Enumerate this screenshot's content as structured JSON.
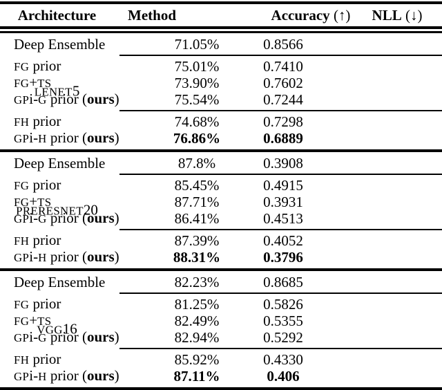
{
  "colors": {
    "background": "#ffffff",
    "text": "#000000",
    "rule": "#000000"
  },
  "table": {
    "header": {
      "architecture": "Architecture",
      "method": "Method",
      "accuracy": "Accuracy",
      "accuracy_suffix": " (↑)",
      "nll": "NLL",
      "nll_suffix": " (↓)"
    },
    "groups": [
      {
        "architecture": [
          {
            "t": "LENET",
            "s": "sc"
          },
          {
            "t": "5",
            "s": "n"
          }
        ],
        "sections": [
          {
            "rows": [
              {
                "method": [
                  {
                    "t": "Deep Ensemble",
                    "s": "n"
                  }
                ],
                "accuracy": "71.05%",
                "nll": "0.8566",
                "bold": false
              }
            ]
          },
          {
            "rows": [
              {
                "method": [
                  {
                    "t": "FG",
                    "s": "sc"
                  },
                  {
                    "t": " prior",
                    "s": "n"
                  }
                ],
                "accuracy": "75.01%",
                "nll": "0.7410",
                "bold": false
              },
              {
                "method": [
                  {
                    "t": "FG",
                    "s": "sc"
                  },
                  {
                    "t": "+",
                    "s": "n"
                  },
                  {
                    "t": "TS",
                    "s": "sc"
                  }
                ],
                "accuracy": "73.90%",
                "nll": "0.7602",
                "bold": false
              },
              {
                "method": [
                  {
                    "t": "GP",
                    "s": "sc"
                  },
                  {
                    "t": "i-",
                    "s": "n"
                  },
                  {
                    "t": "G",
                    "s": "sc"
                  },
                  {
                    "t": " prior (",
                    "s": "n"
                  },
                  {
                    "t": "ours",
                    "s": "b"
                  },
                  {
                    "t": ")",
                    "s": "n"
                  }
                ],
                "accuracy": "75.54%",
                "nll": "0.7244",
                "bold": false
              }
            ]
          },
          {
            "rows": [
              {
                "method": [
                  {
                    "t": "FH",
                    "s": "sc"
                  },
                  {
                    "t": " prior",
                    "s": "n"
                  }
                ],
                "accuracy": "74.68%",
                "nll": "0.7298",
                "bold": false
              },
              {
                "method": [
                  {
                    "t": "GP",
                    "s": "sc"
                  },
                  {
                    "t": "i-",
                    "s": "n"
                  },
                  {
                    "t": "H",
                    "s": "sc"
                  },
                  {
                    "t": " prior (",
                    "s": "n"
                  },
                  {
                    "t": "ours",
                    "s": "b"
                  },
                  {
                    "t": ")",
                    "s": "n"
                  }
                ],
                "accuracy": "76.86%",
                "nll": "0.6889",
                "bold": true
              }
            ]
          }
        ]
      },
      {
        "architecture": [
          {
            "t": "PRERESNET",
            "s": "sc"
          },
          {
            "t": "20",
            "s": "n"
          }
        ],
        "sections": [
          {
            "rows": [
              {
                "method": [
                  {
                    "t": "Deep Ensemble",
                    "s": "n"
                  }
                ],
                "accuracy": "87.8%",
                "nll": "0.3908",
                "bold": false
              }
            ]
          },
          {
            "rows": [
              {
                "method": [
                  {
                    "t": "FG",
                    "s": "sc"
                  },
                  {
                    "t": " prior",
                    "s": "n"
                  }
                ],
                "accuracy": "85.45%",
                "nll": "0.4915",
                "bold": false
              },
              {
                "method": [
                  {
                    "t": "FG",
                    "s": "sc"
                  },
                  {
                    "t": "+",
                    "s": "n"
                  },
                  {
                    "t": "TS",
                    "s": "sc"
                  }
                ],
                "accuracy": "87.71%",
                "nll": "0.3931",
                "bold": false
              },
              {
                "method": [
                  {
                    "t": "GP",
                    "s": "sc"
                  },
                  {
                    "t": "i-",
                    "s": "n"
                  },
                  {
                    "t": "G",
                    "s": "sc"
                  },
                  {
                    "t": " prior (",
                    "s": "n"
                  },
                  {
                    "t": "ours",
                    "s": "b"
                  },
                  {
                    "t": ")",
                    "s": "n"
                  }
                ],
                "accuracy": "86.41%",
                "nll": "0.4513",
                "bold": false
              }
            ]
          },
          {
            "rows": [
              {
                "method": [
                  {
                    "t": "FH",
                    "s": "sc"
                  },
                  {
                    "t": " prior",
                    "s": "n"
                  }
                ],
                "accuracy": "87.39%",
                "nll": "0.4052",
                "bold": false
              },
              {
                "method": [
                  {
                    "t": "GP",
                    "s": "sc"
                  },
                  {
                    "t": "i-",
                    "s": "n"
                  },
                  {
                    "t": "H",
                    "s": "sc"
                  },
                  {
                    "t": " prior (",
                    "s": "n"
                  },
                  {
                    "t": "ours",
                    "s": "b"
                  },
                  {
                    "t": ")",
                    "s": "n"
                  }
                ],
                "accuracy": "88.31%",
                "nll": "0.3796",
                "bold": true
              }
            ]
          }
        ]
      },
      {
        "architecture": [
          {
            "t": "VGG",
            "s": "sc"
          },
          {
            "t": "16",
            "s": "n"
          }
        ],
        "sections": [
          {
            "rows": [
              {
                "method": [
                  {
                    "t": "Deep Ensemble",
                    "s": "n"
                  }
                ],
                "accuracy": "82.23%",
                "nll": "0.8685",
                "bold": false
              }
            ]
          },
          {
            "rows": [
              {
                "method": [
                  {
                    "t": "FG",
                    "s": "sc"
                  },
                  {
                    "t": " prior",
                    "s": "n"
                  }
                ],
                "accuracy": "81.25%",
                "nll": "0.5826",
                "bold": false
              },
              {
                "method": [
                  {
                    "t": "FG",
                    "s": "sc"
                  },
                  {
                    "t": "+",
                    "s": "n"
                  },
                  {
                    "t": "TS",
                    "s": "sc"
                  }
                ],
                "accuracy": "82.49%",
                "nll": "0.5355",
                "bold": false
              },
              {
                "method": [
                  {
                    "t": "GP",
                    "s": "sc"
                  },
                  {
                    "t": "i-",
                    "s": "n"
                  },
                  {
                    "t": "G",
                    "s": "sc"
                  },
                  {
                    "t": " prior (",
                    "s": "n"
                  },
                  {
                    "t": "ours",
                    "s": "b"
                  },
                  {
                    "t": ")",
                    "s": "n"
                  }
                ],
                "accuracy": "82.94%",
                "nll": "0.5292",
                "bold": false
              }
            ]
          },
          {
            "rows": [
              {
                "method": [
                  {
                    "t": "FH",
                    "s": "sc"
                  },
                  {
                    "t": " prior",
                    "s": "n"
                  }
                ],
                "accuracy": "85.92%",
                "nll": "0.4330",
                "bold": false
              },
              {
                "method": [
                  {
                    "t": "GP",
                    "s": "sc"
                  },
                  {
                    "t": "i-",
                    "s": "n"
                  },
                  {
                    "t": "H",
                    "s": "sc"
                  },
                  {
                    "t": " prior (",
                    "s": "n"
                  },
                  {
                    "t": "ours",
                    "s": "b"
                  },
                  {
                    "t": ")",
                    "s": "n"
                  }
                ],
                "accuracy": "87.11%",
                "nll": "0.406",
                "bold": true
              }
            ]
          }
        ]
      }
    ]
  }
}
